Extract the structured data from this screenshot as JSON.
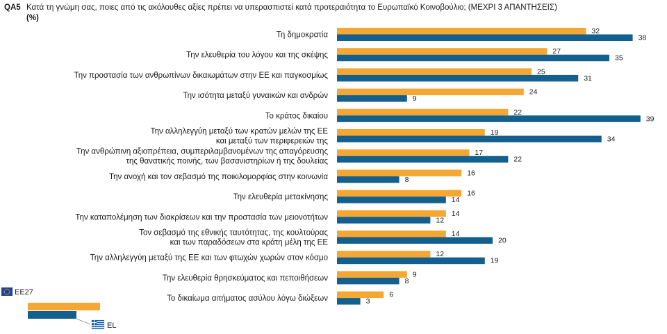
{
  "header": {
    "code": "QA5",
    "question": "Κατά τη γνώμη σας, ποιες από τις ακόλουθες αξίες πρέπει να υπερασπιστεί κατά προτεραιότητα το Ευρωπαϊκό Κοινοβούλιο; (ΜΕΧΡΙ 3 ΑΠΑΝΤΗΣΕΙΣ)",
    "unit": "(%)"
  },
  "colors": {
    "eu27": "#f5a733",
    "el": "#135f8e"
  },
  "legend": {
    "eu27_label": "EE27",
    "el_label": "EL",
    "eu27_icon": "eu-flag-icon",
    "el_icon": "greek-flag-icon"
  },
  "chart_data": {
    "type": "bar",
    "orientation": "horizontal",
    "categories": [
      [
        "Τη δημοκρατία"
      ],
      [
        "Την ελευθερία του λόγου και της σκέψης"
      ],
      [
        "Την προστασία των ανθρωπίνων δικαιωμάτων στην ΕΕ και παγκοσμίως"
      ],
      [
        "Την ισότητα μεταξύ γυναικών και ανδρών"
      ],
      [
        "Το κράτος δικαίου"
      ],
      [
        "Την αλληλεγγύη μεταξύ των κρατών μελών της ΕΕ",
        "και μεταξύ των περιφερειών της"
      ],
      [
        "Την ανθρώπινη αξιοπρέπεια, συμπεριλαμβανομένων της απαγόρευσης",
        "της θανατικής ποινής, των βασανιστηρίων ή της δουλείας"
      ],
      [
        "Την ανοχή και τον σεβασμό της ποικιλομορφίας στην κοινωνία"
      ],
      [
        "Την ελευθερία μετακίνησης"
      ],
      [
        "Την καταπολέμηση των διακρίσεων και την προστασία των μειονοτήτων"
      ],
      [
        "Τον σεβασμό της εθνικής ταυτότητας, της κουλτούρας",
        "και των παραδόσεων στα κράτη μέλη της ΕΕ"
      ],
      [
        "Την αλληλεγγύη μεταξύ της ΕΕ και των φτωχών χωρών στον κόσμο"
      ],
      [
        "Την ελευθερία θρησκεύματος και πεποιθήσεων"
      ],
      [
        "Το δικαίωμα αιτήματος ασύλου λόγω διώξεων"
      ]
    ],
    "series": [
      {
        "name": "EE27",
        "values": [
          32,
          27,
          25,
          24,
          22,
          19,
          17,
          16,
          16,
          14,
          14,
          12,
          9,
          6
        ]
      },
      {
        "name": "EL",
        "values": [
          38,
          35,
          31,
          9,
          39,
          34,
          22,
          8,
          14,
          12,
          20,
          19,
          8,
          3
        ]
      }
    ],
    "xlim": [
      0,
      40
    ],
    "grid": false,
    "legend_position": "bottom-left"
  }
}
